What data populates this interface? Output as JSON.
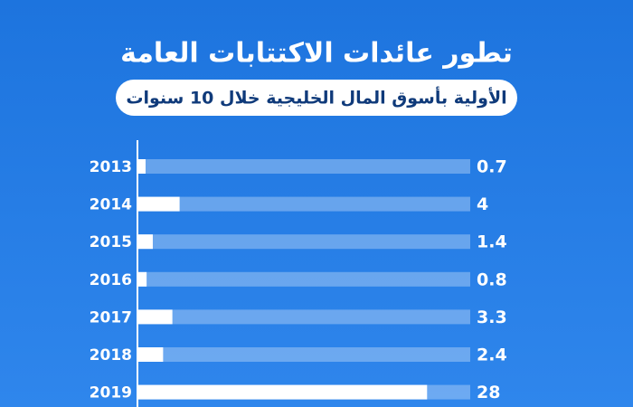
{
  "chart_data": {
    "type": "bar",
    "title": "تطور عائدات الاكتتابات العامة",
    "subtitle": "الأولية بأسوق المال الخليجية خلال 10 سنوات",
    "categories": [
      "2013",
      "2014",
      "2015",
      "2016",
      "2017",
      "2018",
      "2019"
    ],
    "values": [
      0.7,
      4,
      1.4,
      0.8,
      3.3,
      2.4,
      28
    ],
    "color": "#ffffff"
  }
}
